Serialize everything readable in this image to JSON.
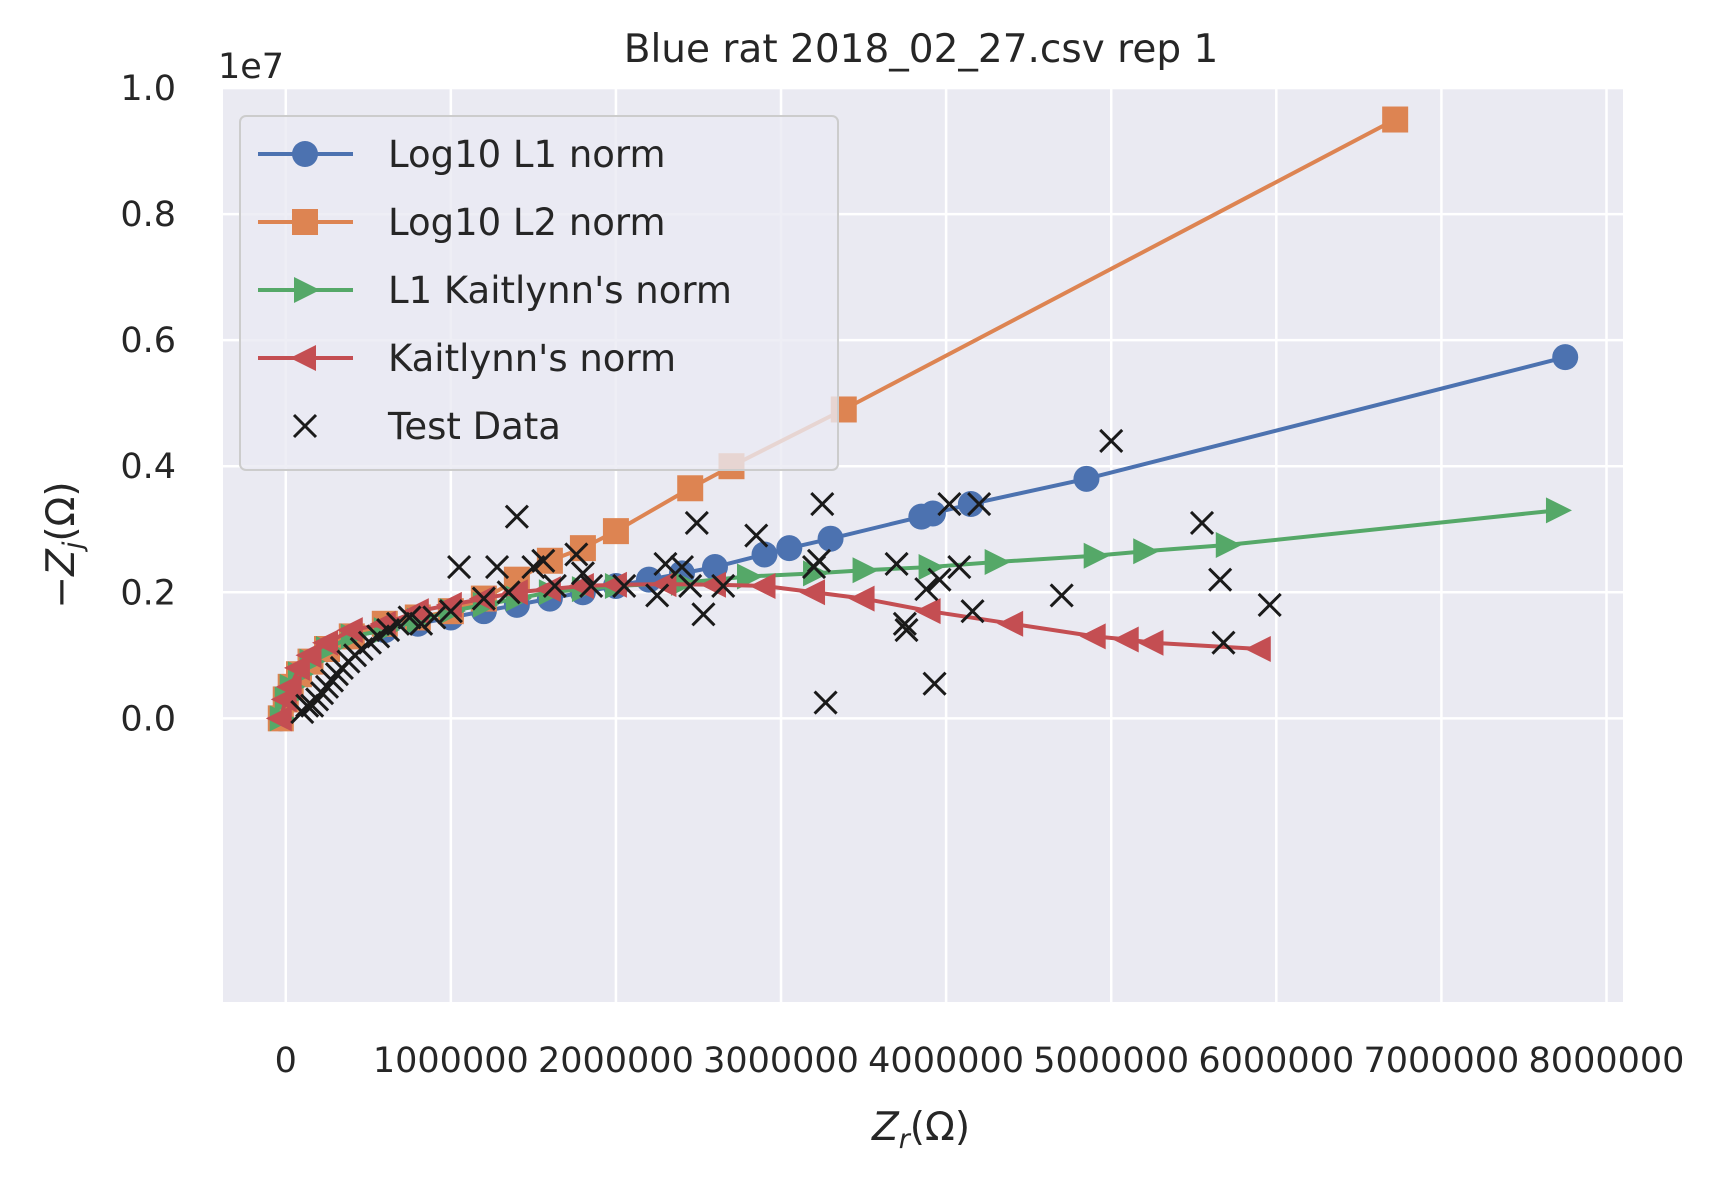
{
  "chart_data": {
    "type": "line",
    "title": "Blue rat 2018_02_27.csv rep 1",
    "xlabel_base": "Z",
    "xlabel_sub": "r",
    "xlabel_unit": "(Ω)",
    "ylabel_prefix": "−Z",
    "ylabel_sub": "j",
    "ylabel_unit": "(Ω)",
    "y_offset_text": "1e7",
    "xlim": [
      -380000,
      8100000
    ],
    "ylim": [
      -0.45,
      1.0
    ],
    "x_ticks": [
      0,
      1000000,
      2000000,
      3000000,
      4000000,
      5000000,
      6000000,
      7000000,
      8000000
    ],
    "x_tick_labels": [
      "0",
      "1000000",
      "2000000",
      "3000000",
      "4000000",
      "5000000",
      "6000000",
      "7000000",
      "8000000"
    ],
    "y_ticks": [
      0.0,
      0.2,
      0.4,
      0.6,
      0.8,
      1.0
    ],
    "y_tick_labels": [
      "0.0",
      "0.2",
      "0.4",
      "0.6",
      "0.8",
      "1.0"
    ],
    "grid": true,
    "legend_position": "top-left",
    "colors": {
      "background": "#eaeaf2",
      "grid": "#ffffff",
      "blue": "#4c72b0",
      "orange": "#dd8452",
      "green": "#55a868",
      "red": "#c44e52",
      "black": "#1a1a1a"
    },
    "series": [
      {
        "name": "Log10 L1 norm",
        "marker": "circle",
        "color": "#4c72b0",
        "x": [
          -30000,
          0,
          30000,
          80000,
          150000,
          250000,
          400000,
          600000,
          800000,
          1000000,
          1200000,
          1400000,
          1600000,
          1800000,
          2000000,
          2200000,
          2400000,
          2600000,
          2900000,
          3050000,
          3300000,
          3850000,
          3920000,
          4150000,
          4850000,
          7750000
        ],
        "y": [
          0.0,
          0.03,
          0.05,
          0.07,
          0.09,
          0.11,
          0.13,
          0.14,
          0.15,
          0.16,
          0.17,
          0.18,
          0.19,
          0.2,
          0.21,
          0.22,
          0.23,
          0.24,
          0.26,
          0.27,
          0.285,
          0.32,
          0.325,
          0.34,
          0.38,
          0.573
        ]
      },
      {
        "name": "Log10 L2 norm",
        "marker": "square",
        "color": "#dd8452",
        "x": [
          -30000,
          0,
          30000,
          80000,
          150000,
          250000,
          400000,
          600000,
          800000,
          1000000,
          1200000,
          1400000,
          1600000,
          1800000,
          2000000,
          2450000,
          2700000,
          3380000,
          6720000
        ],
        "y": [
          0.0,
          0.03,
          0.05,
          0.07,
          0.09,
          0.11,
          0.13,
          0.15,
          0.16,
          0.17,
          0.19,
          0.22,
          0.25,
          0.27,
          0.297,
          0.365,
          0.4,
          0.49,
          0.95
        ]
      },
      {
        "name": "L1 Kaitlynn's norm",
        "marker": "triangle-right",
        "color": "#55a868",
        "x": [
          -30000,
          0,
          30000,
          80000,
          150000,
          250000,
          400000,
          600000,
          800000,
          1000000,
          1200000,
          1400000,
          1600000,
          1800000,
          2000000,
          2400000,
          2800000,
          3200000,
          3500000,
          3900000,
          4300000,
          4900000,
          5200000,
          5700000,
          7700000
        ],
        "y": [
          0.0,
          0.03,
          0.05,
          0.07,
          0.09,
          0.11,
          0.13,
          0.14,
          0.155,
          0.17,
          0.18,
          0.19,
          0.2,
          0.205,
          0.21,
          0.215,
          0.225,
          0.23,
          0.235,
          0.24,
          0.248,
          0.258,
          0.265,
          0.275,
          0.33
        ]
      },
      {
        "name": "Kaitlynn's norm",
        "marker": "triangle-left",
        "color": "#c44e52",
        "x": [
          -30000,
          0,
          30000,
          80000,
          150000,
          250000,
          400000,
          600000,
          800000,
          1000000,
          1200000,
          1400000,
          1600000,
          1800000,
          2000000,
          2300000,
          2600000,
          2900000,
          3200000,
          3500000,
          3900000,
          4400000,
          4900000,
          5100000,
          5250000,
          5900000
        ],
        "y": [
          0.0,
          0.03,
          0.05,
          0.08,
          0.1,
          0.12,
          0.14,
          0.15,
          0.17,
          0.18,
          0.19,
          0.2,
          0.205,
          0.21,
          0.212,
          0.213,
          0.212,
          0.21,
          0.2,
          0.19,
          0.17,
          0.15,
          0.13,
          0.125,
          0.12,
          0.11
        ]
      }
    ],
    "scatter": {
      "name": "Test Data",
      "marker": "x",
      "color": "#1a1a1a",
      "points": [
        [
          100000,
          0.01
        ],
        [
          130000,
          0.02
        ],
        [
          160000,
          0.02
        ],
        [
          190000,
          0.03
        ],
        [
          220000,
          0.04
        ],
        [
          250000,
          0.05
        ],
        [
          280000,
          0.06
        ],
        [
          310000,
          0.07
        ],
        [
          340000,
          0.08
        ],
        [
          380000,
          0.09
        ],
        [
          420000,
          0.1
        ],
        [
          460000,
          0.11
        ],
        [
          510000,
          0.12
        ],
        [
          560000,
          0.13
        ],
        [
          620000,
          0.14
        ],
        [
          680000,
          0.15
        ],
        [
          750000,
          0.16
        ],
        [
          820000,
          0.15
        ],
        [
          900000,
          0.16
        ],
        [
          1000000,
          0.17
        ],
        [
          1050000,
          0.24
        ],
        [
          1200000,
          0.19
        ],
        [
          1280000,
          0.24
        ],
        [
          1350000,
          0.2
        ],
        [
          1400000,
          0.32
        ],
        [
          1500000,
          0.24
        ],
        [
          1560000,
          0.25
        ],
        [
          1630000,
          0.21
        ],
        [
          1760000,
          0.26
        ],
        [
          1800000,
          0.23
        ],
        [
          1850000,
          0.21
        ],
        [
          2050000,
          0.21
        ],
        [
          2250000,
          0.195
        ],
        [
          2300000,
          0.245
        ],
        [
          2400000,
          0.24
        ],
        [
          2450000,
          0.21
        ],
        [
          2490000,
          0.31
        ],
        [
          2530000,
          0.165
        ],
        [
          2650000,
          0.21
        ],
        [
          2850000,
          0.29
        ],
        [
          3200000,
          0.24
        ],
        [
          3230000,
          0.25
        ],
        [
          3250000,
          0.34
        ],
        [
          3270000,
          0.025
        ],
        [
          3700000,
          0.245
        ],
        [
          3750000,
          0.15
        ],
        [
          3760000,
          0.14
        ],
        [
          3880000,
          0.205
        ],
        [
          3930000,
          0.055
        ],
        [
          3960000,
          0.22
        ],
        [
          4020000,
          0.34
        ],
        [
          4080000,
          0.24
        ],
        [
          4160000,
          0.17
        ],
        [
          4200000,
          0.34
        ],
        [
          4700000,
          0.195
        ],
        [
          5000000,
          0.44
        ],
        [
          5550000,
          0.31
        ],
        [
          5660000,
          0.22
        ],
        [
          5680000,
          0.12
        ],
        [
          5960000,
          0.18
        ]
      ]
    }
  }
}
